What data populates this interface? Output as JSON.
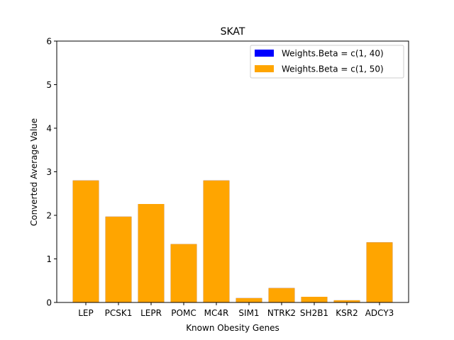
{
  "chart_data": {
    "type": "bar",
    "title": "SKAT",
    "xlabel": "Known Obesity Genes",
    "ylabel": "Converted Average Value",
    "ylim": [
      0,
      6
    ],
    "yticks": [
      0,
      1,
      2,
      3,
      4,
      5,
      6
    ],
    "grid": false,
    "legend_position": "top-right",
    "categories": [
      "LEP",
      "PCSK1",
      "LEPR",
      "POMC",
      "MC4R",
      "SIM1",
      "NTRK2",
      "SH2B1",
      "KSR2",
      "ADCY3"
    ],
    "series": [
      {
        "name": "Weights.Beta = c(1, 40)",
        "color": "#0000ff",
        "values": [
          2.8,
          1.97,
          2.26,
          1.34,
          2.8,
          0.1,
          0.33,
          0.13,
          0.05,
          1.38
        ]
      },
      {
        "name": "Weights.Beta = c(1, 50)",
        "color": "#ffa500",
        "values": [
          2.8,
          1.97,
          2.26,
          1.34,
          2.8,
          0.1,
          0.33,
          0.13,
          0.05,
          1.38
        ]
      }
    ]
  }
}
